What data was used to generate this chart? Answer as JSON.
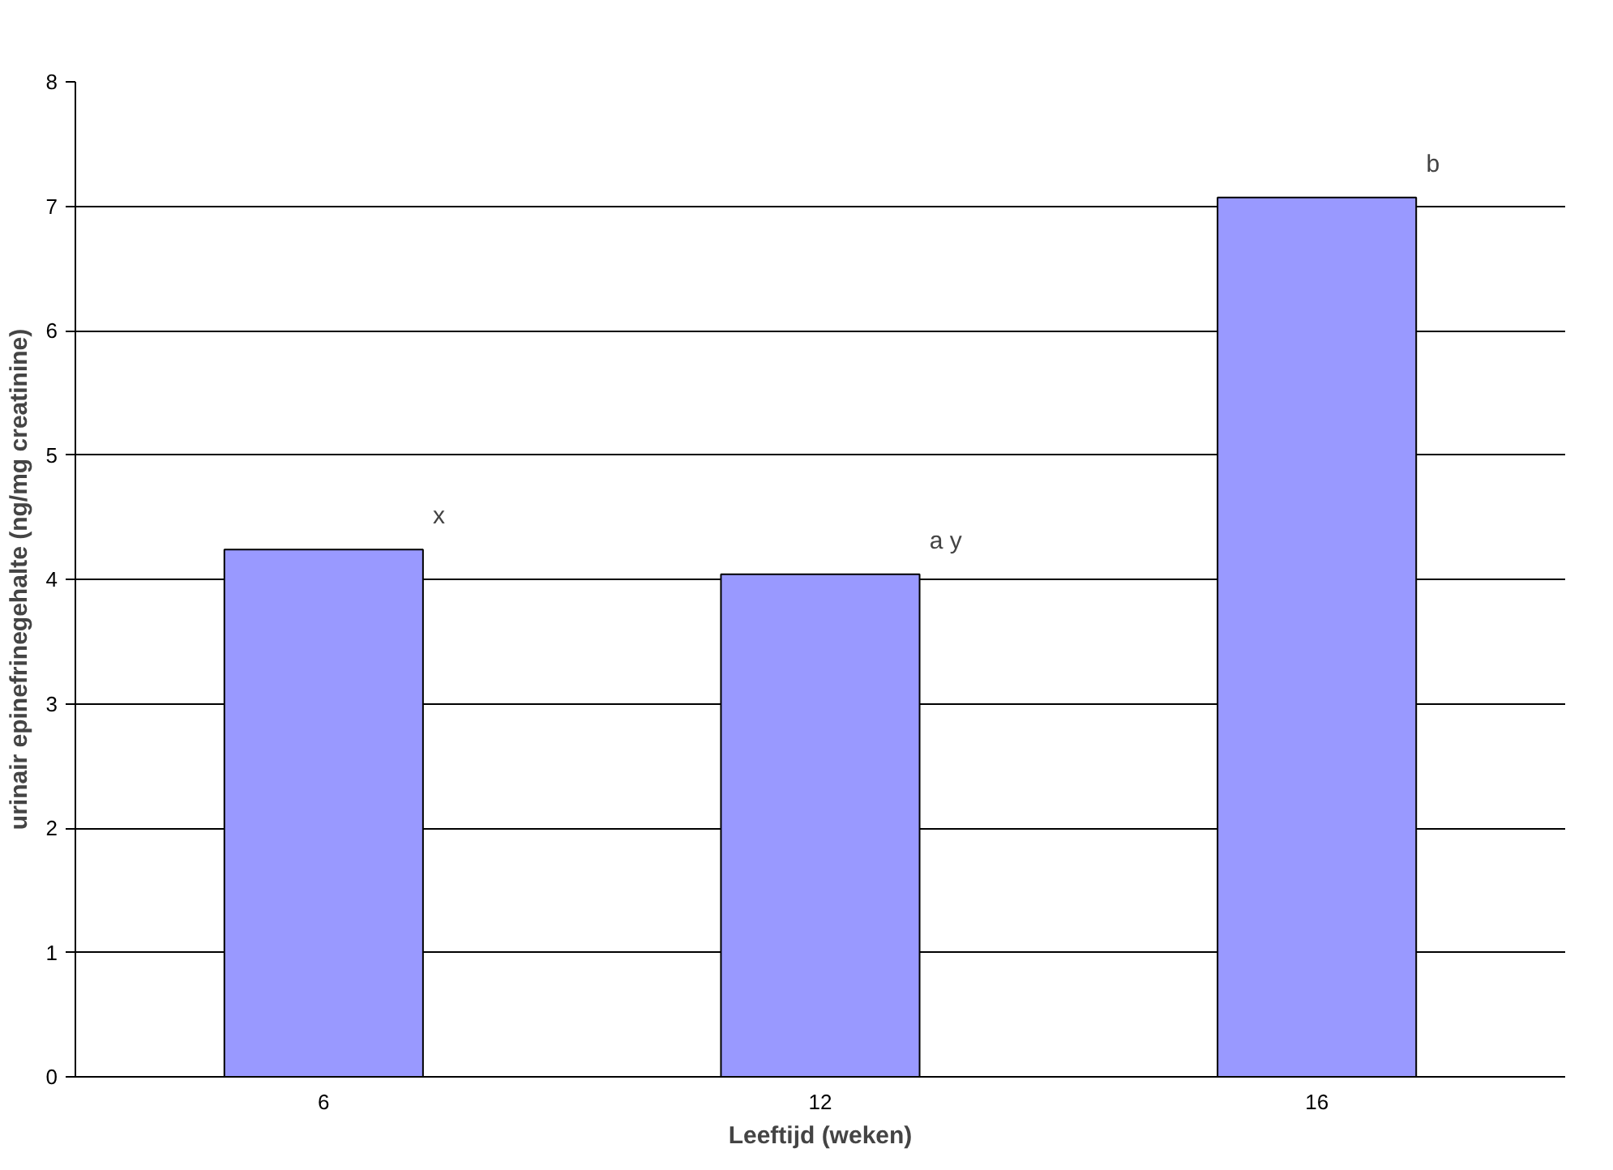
{
  "chart_data": {
    "type": "bar",
    "xlabel": "Leeftijd (weken)",
    "ylabel": "urinair epinefrinegehalte (ng/mg creatinine)",
    "categories": [
      "6",
      "12",
      "16"
    ],
    "values": [
      4.24,
      4.04,
      7.07
    ],
    "color": "#9999ff",
    "ylim": [
      0,
      8
    ],
    "yticks": [
      0,
      1,
      2,
      3,
      4,
      5,
      6,
      7,
      8
    ],
    "grid": "y",
    "annotations": [
      "x",
      "a y",
      "b"
    ]
  }
}
